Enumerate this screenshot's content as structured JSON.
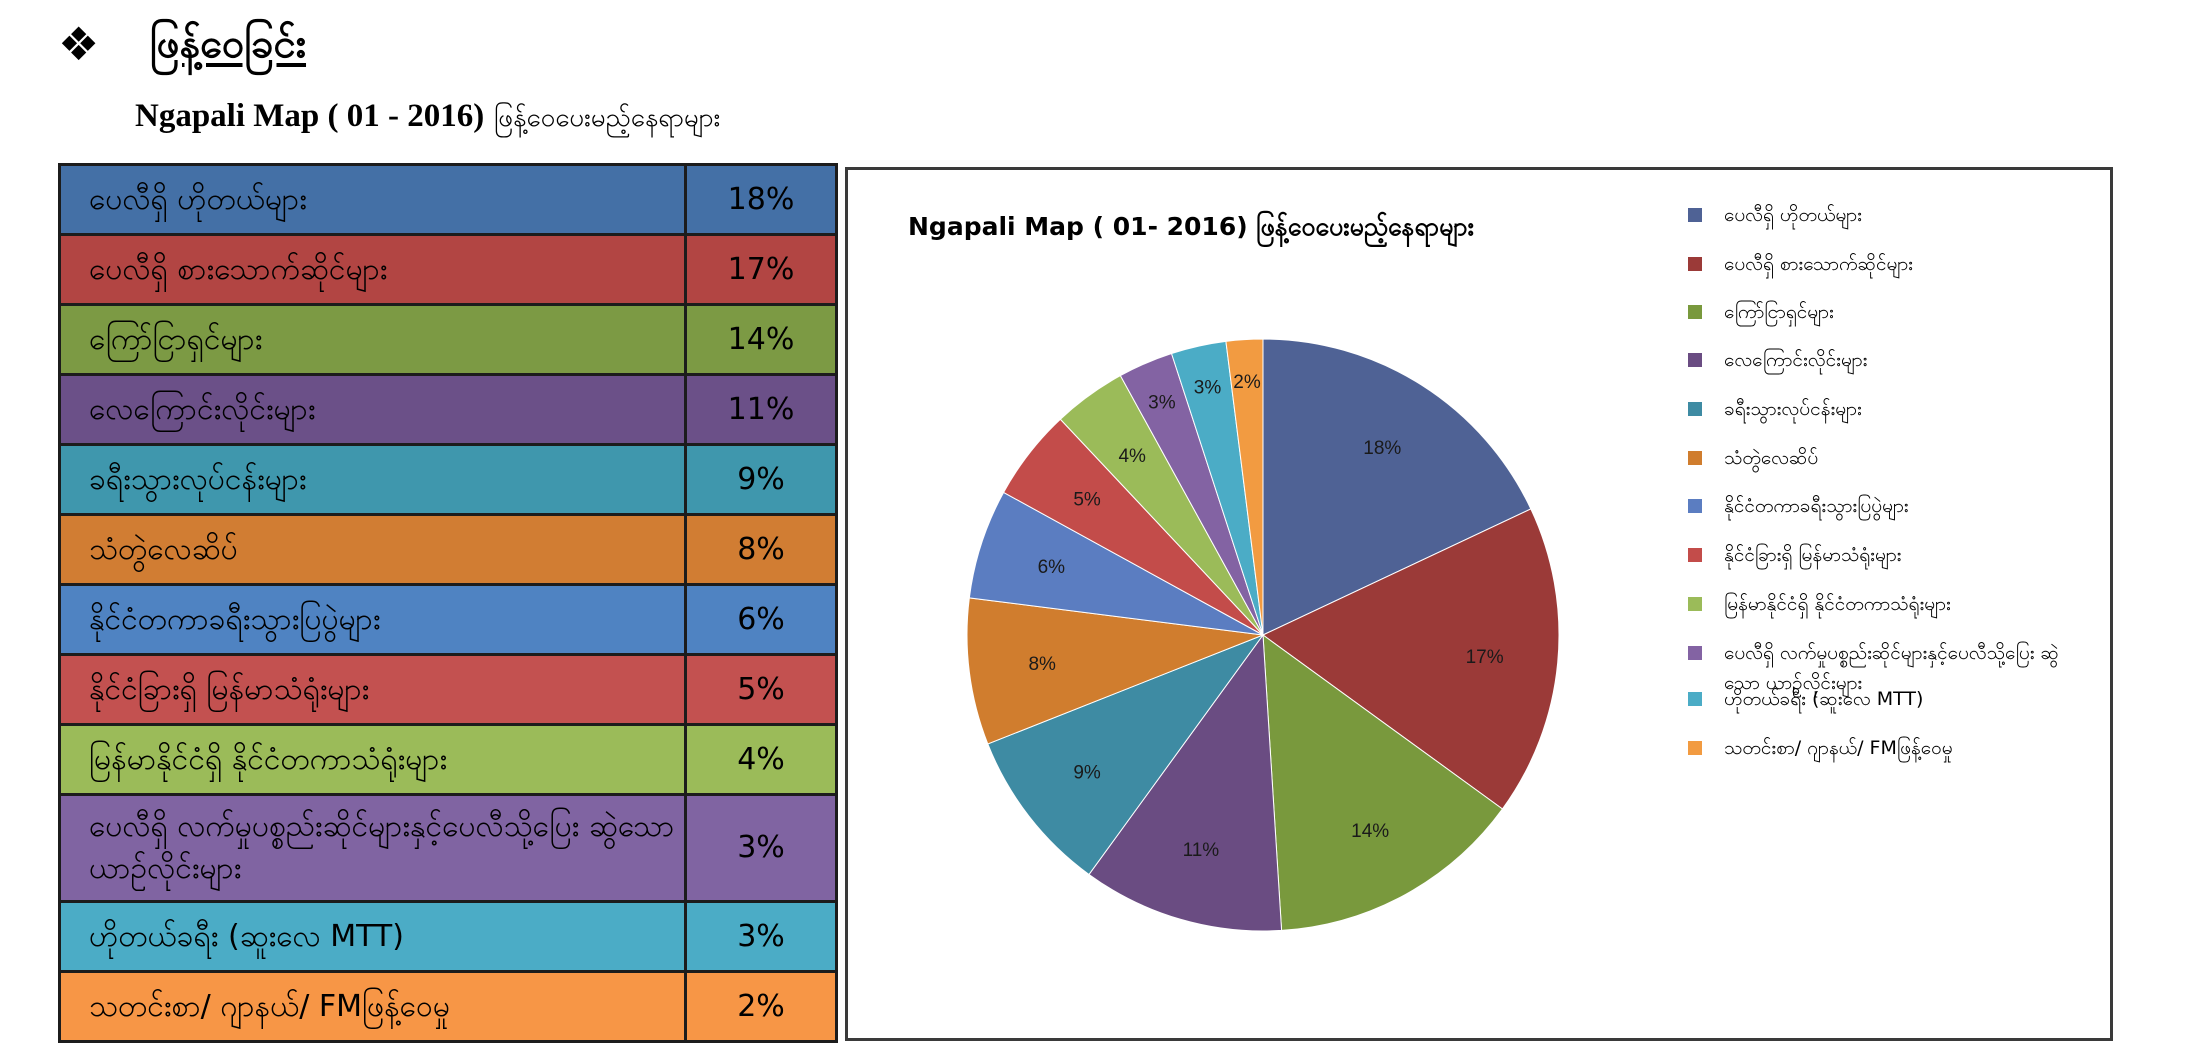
{
  "heading": {
    "bullet": "❖",
    "title": "ဖြန့်ဝေခြင်း"
  },
  "subtitle": {
    "english": "Ngapali Map (  01 - 2016)",
    "burmese": "ဖြန့်ဝေပေးမည့်နေရာများ"
  },
  "colors": {
    "blue": "#4f6295",
    "red": "#9b3a38",
    "green": "#79993d",
    "purple": "#6a4c82",
    "teal": "#3e8ba3",
    "orange": "#d07d2e",
    "lightblue": "#5b7dc1",
    "lightred": "#c34c4a",
    "lightgreen": "#9bbb59",
    "violet": "#8363a3",
    "cyan": "#4bacc6",
    "lightorange": "#f29b41"
  },
  "table": {
    "rows": [
      {
        "label": "ပေလီရှိ ဟိုတယ်များ",
        "value": "18%",
        "bg": "#4470a6"
      },
      {
        "label": "ပေလီရှိ စားသောက်ဆိုင်များ",
        "value": "17%",
        "bg": "#b24543"
      },
      {
        "label": "ကြော်ငြာရှင်များ",
        "value": "14%",
        "bg": "#7c9a44"
      },
      {
        "label": "လေကြောင်းလိုင်းများ",
        "value": "11%",
        "bg": "#6b5088"
      },
      {
        "label": "ခရီးသွားလုပ်ငန်းများ",
        "value": "9%",
        "bg": "#3f97ad"
      },
      {
        "label": "သံတွဲလေဆိပ်",
        "value": "8%",
        "bg": "#d17d33"
      },
      {
        "label": "နိုင်ငံတကာခရီးသွားပြပွဲများ",
        "value": "6%",
        "bg": "#4f83c2"
      },
      {
        "label": "နိုင်ငံခြားရှိ မြန်မာသံရုံးများ",
        "value": "5%",
        "bg": "#c35150"
      },
      {
        "label": "မြန်မာနိုင်ငံရှိ နိုင်ငံတကာသံရုံးများ",
        "value": "4%",
        "bg": "#9bbb59"
      },
      {
        "label": "ပေလီရှိ လက်မှုပစ္စည်းဆိုင်များနှင့်ပေလီသို့ပြေး ဆွဲသော ယာဉ်လိုင်းများ",
        "value": "3%",
        "bg": "#8064a2"
      },
      {
        "label": "ဟိုတယ်ခရီး (ဆူးလေ MTT)",
        "value": "3%",
        "bg": "#4bacc6"
      },
      {
        "label": "သတင်းစာ/ ဂျာနယ်/ FMဖြန့်ဝေမှု",
        "value": "2%",
        "bg": "#f79646"
      }
    ]
  },
  "chart_data": {
    "type": "pie",
    "title": "Ngapali Map ( 01- 2016) ဖြန့်ဝေပေးမည့်နေရာများ",
    "legend_position": "right",
    "categories": [
      "ပေလီရှိ ဟိုတယ်များ",
      "ပေလီရှိ စားသောက်ဆိုင်များ",
      "ကြော်ငြာရှင်များ",
      "လေကြောင်းလိုင်းများ",
      "ခရီးသွားလုပ်ငန်းများ",
      "သံတွဲလေဆိပ်",
      "နိုင်ငံတကာခရီးသွားပြပွဲများ",
      "နိုင်ငံခြားရှိ မြန်မာသံရုံးများ",
      "မြန်မာနိုင်ငံရှိ နိုင်ငံတကာသံရုံးများ",
      "ပေလီရှိ လက်မှုပစ္စည်းဆိုင်များနှင့်ပေလီသို့ပြေး ဆွဲသော ယာဉ်လိုင်းများ",
      "ဟိုတယ်ခရီး (ဆူးလေ MTT)",
      "သတင်းစာ/ ဂျာနယ်/ FMဖြန့်ဝေမှု"
    ],
    "values": [
      18,
      17,
      14,
      11,
      9,
      8,
      6,
      5,
      4,
      3,
      3,
      2
    ],
    "data_labels": [
      "18%",
      "17%",
      "14%",
      "11%",
      "9%",
      "8%",
      "6%",
      "5%",
      "4%",
      "3%",
      "3%",
      "2%"
    ],
    "slice_colors": [
      "#4f6295",
      "#9b3a38",
      "#79993d",
      "#6a4c82",
      "#3e8ba3",
      "#d07d2e",
      "#5b7dc1",
      "#c34c4a",
      "#9bbb59",
      "#8363a3",
      "#4bacc6",
      "#f29b41"
    ]
  }
}
